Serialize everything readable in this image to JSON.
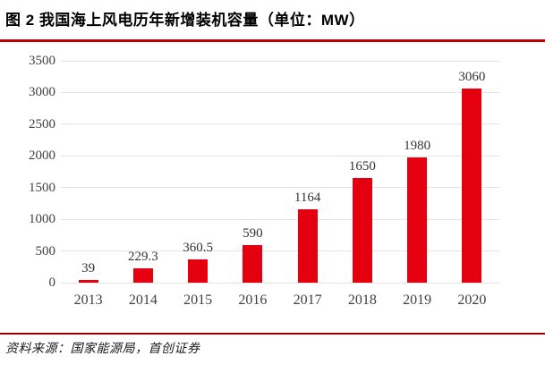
{
  "header": {
    "title": "图 2 我国海上风电历年新增装机容量（单位：MW）"
  },
  "chart_data": {
    "type": "bar",
    "title": "图 2 我国海上风电历年新增装机容量（单位：MW）",
    "unit": "MW",
    "categories": [
      "2013",
      "2014",
      "2015",
      "2016",
      "2017",
      "2018",
      "2019",
      "2020"
    ],
    "values": [
      39,
      229.3,
      360.5,
      590,
      1164,
      1650,
      1980,
      3060
    ],
    "value_labels": [
      "39",
      "229.3",
      "360.5",
      "590",
      "1164",
      "1650",
      "1980",
      "3060"
    ],
    "xlabel": "",
    "ylabel": "",
    "ylim": [
      0,
      3500
    ],
    "ytick_interval": 500,
    "yticks": [
      0,
      500,
      1000,
      1500,
      2000,
      2500,
      3000,
      3500
    ],
    "grid": true,
    "legend_position": "none",
    "bar_color": "#e4000f"
  },
  "footer": {
    "source": "资料来源：国家能源局，首创证券"
  },
  "colors": {
    "bar": "#e4000f",
    "rule_top": "#c00000",
    "rule_bottom": "#a00000",
    "gridline": "#e4e4e4",
    "tick_text": "#404040",
    "title_text": "#000000"
  }
}
